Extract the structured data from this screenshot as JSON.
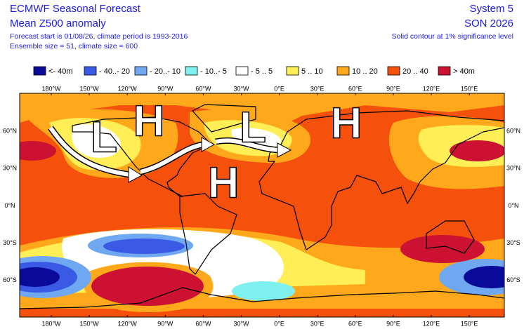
{
  "header": {
    "title": "ECMWF Seasonal Forecast",
    "subtitle": "Mean Z500 anomaly",
    "forecast_info": "Forecast start is 01/08/26, climate period is 1993-2016",
    "ensemble_info": "Ensemble size = 51, climate size = 600",
    "system": "System 5",
    "season": "SON 2026",
    "contour_note": "Solid contour at 1% significance level"
  },
  "legend": [
    {
      "label": "<- 40m",
      "color": "#0a0a9a"
    },
    {
      "label": "- 40..- 20",
      "color": "#3a5ae6"
    },
    {
      "label": "- 20..- 10",
      "color": "#6fa8f0"
    },
    {
      "label": "- 10..- 5",
      "color": "#7ff0f0"
    },
    {
      "label": "- 5 .. 5",
      "color": "#ffffff"
    },
    {
      "label": "5 .. 10",
      "color": "#ffee55"
    },
    {
      "label": "10 .. 20",
      "color": "#ffa81c"
    },
    {
      "label": "20 .. 40",
      "color": "#f5500c"
    },
    {
      "label": "> 40m",
      "color": "#cc1133"
    }
  ],
  "longitude_labels": [
    "180°W",
    "150°W",
    "120°W",
    "90°W",
    "60°W",
    "30°W",
    "0°E",
    "30°E",
    "60°E",
    "90°E",
    "120°E",
    "150°E"
  ],
  "latitude_labels": [
    "60°N",
    "30°N",
    "0°N",
    "30°S",
    "60°S"
  ],
  "pressure_labels": [
    "L",
    "H",
    "H",
    "L",
    "H"
  ]
}
